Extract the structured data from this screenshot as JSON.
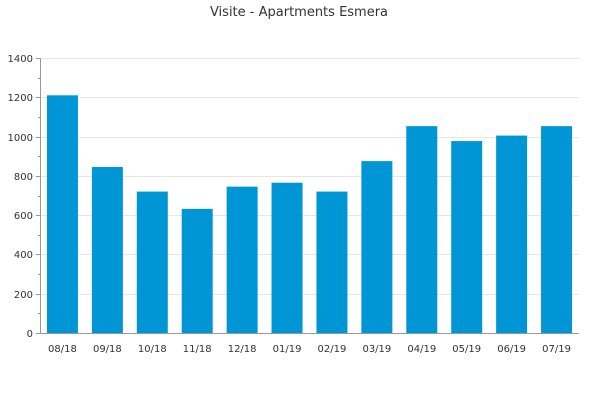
{
  "chart_data": {
    "type": "bar",
    "title": "Visite - Apartments Esmera",
    "xlabel": "",
    "ylabel": "",
    "categories": [
      "08/18",
      "09/18",
      "10/18",
      "11/18",
      "12/18",
      "01/19",
      "02/19",
      "03/19",
      "04/19",
      "05/19",
      "06/19",
      "07/19"
    ],
    "values": [
      1210,
      845,
      720,
      632,
      745,
      765,
      720,
      875,
      1053,
      977,
      1005,
      1053
    ],
    "ylim": [
      0,
      1400
    ],
    "yticks": [
      0,
      200,
      400,
      600,
      800,
      1000,
      1200,
      1400
    ],
    "grid": true,
    "bar_color": "#0096d6"
  }
}
